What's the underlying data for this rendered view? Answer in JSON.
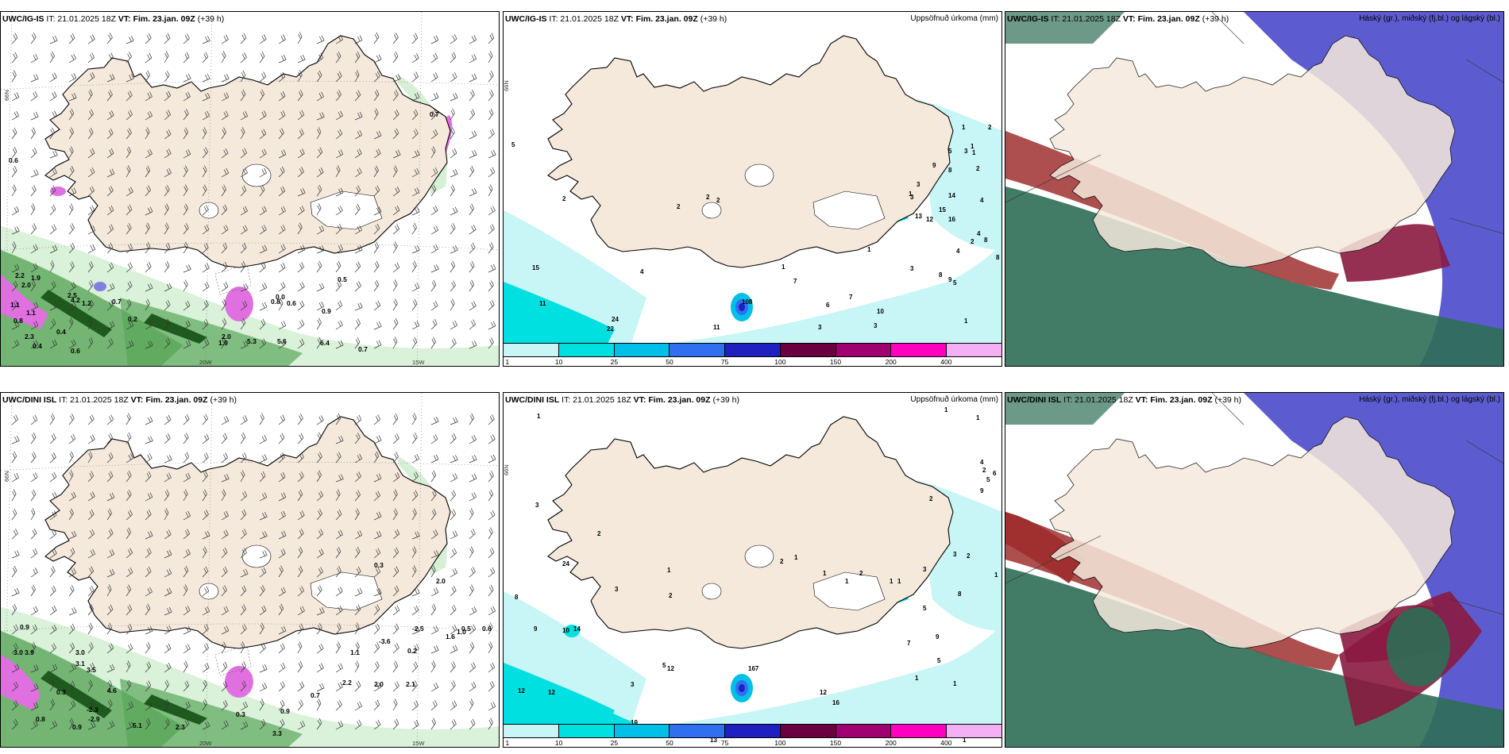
{
  "header_common": {
    "it_label": "IT:",
    "it_value": "21.01.2025 18Z",
    "vt_label": "VT:",
    "vt_value": "Fim. 23.jan. 09Z",
    "lead": "(+39 h)"
  },
  "panels": [
    {
      "model": "UWC/IG-IS",
      "kind": "wind_precip",
      "right_label": ""
    },
    {
      "model": "UWC/IG-IS",
      "kind": "accum",
      "right_label": "Uppsöfnuð úrkoma (mm)"
    },
    {
      "model": "UWC/IG-IS",
      "kind": "clouds",
      "right_label": "Háský (gr.), miðský (fj.bl.) og lágský (bl.)"
    },
    {
      "model": "UWC/DINI ISL",
      "kind": "wind_precip",
      "right_label": ""
    },
    {
      "model": "UWC/DINI ISL",
      "kind": "accum",
      "right_label": "Uppsöfnuð úrkoma (mm)"
    },
    {
      "model": "UWC/DINI ISL",
      "kind": "clouds",
      "right_label": "Háský (gr.), miðský (fj.bl.) og lágský (bl.)"
    }
  ],
  "axis_labels": {
    "lat": "66N",
    "lon_w": "20W",
    "lon_e": "15W"
  },
  "colorbar": {
    "ticks": [
      "1",
      "10",
      "25",
      "50",
      "75",
      "100",
      "150",
      "200",
      "400"
    ],
    "colors": [
      "#c8f5f5",
      "#00e0e0",
      "#00bfe8",
      "#3070f0",
      "#2020c0",
      "#6a0040",
      "#a00070",
      "#ff00c0",
      "#f4b0f4"
    ]
  },
  "colors": {
    "land": "#f5e9dc",
    "ocean_fill": "#ffffff",
    "precip_light": "#d6f0d6",
    "precip_mid": "#5aa65a",
    "precip_dark": "#1e5a1e",
    "snow_pink": "#e070e0",
    "cloud_high": "#2e6e56",
    "cloud_mid": "#a03030",
    "cloud_low": "#4040c8"
  },
  "accum_top": {
    "labels": [
      "5",
      "2",
      "2",
      "2",
      "2",
      "4",
      "15",
      "11",
      "24",
      "22",
      "11",
      "108",
      "7",
      "6",
      "7",
      "3",
      "3",
      "1",
      "1",
      "1",
      "3",
      "3",
      "13",
      "15",
      "14",
      "9",
      "8",
      "5",
      "3",
      "2",
      "1",
      "1",
      "1",
      "2",
      "4",
      "4",
      "4",
      "2",
      "8",
      "8",
      "8",
      "9",
      "5",
      "3",
      "12",
      "16",
      "10",
      "1"
    ]
  },
  "accum_bottom": {
    "labels": [
      "1",
      "24",
      "3",
      "2",
      "1",
      "2",
      "8",
      "9",
      "10",
      "14",
      "12",
      "12",
      "3",
      "5",
      "12",
      "3",
      "19",
      "13",
      "8",
      "167",
      "12",
      "16",
      "2",
      "1",
      "1",
      "1",
      "2",
      "2",
      "5",
      "4",
      "2",
      "3",
      "3",
      "8",
      "5",
      "9",
      "7",
      "5",
      "1",
      "1",
      "1",
      "2",
      "1",
      "1",
      "2",
      "1",
      "1",
      "9",
      "6",
      "1"
    ]
  },
  "wind_top": {
    "labels": [
      "0.6",
      "0.7",
      "2.2",
      "2.0",
      "1.9",
      "1.1",
      "0.8",
      "0.4",
      "0.6",
      "2.3",
      "2.5",
      "4.2",
      "1.2",
      "0.7",
      "0.2",
      "1.1",
      "0.4",
      "2.0",
      "1.9",
      "5.3",
      "5.6",
      "6.4",
      "0.7",
      "0.9",
      "0.6",
      "0.5",
      "0.8",
      "0.0"
    ]
  },
  "wind_bottom": {
    "labels": [
      "0.9",
      "3.0",
      "3.1",
      "3.5",
      "4.6",
      "0.3",
      "-2.3",
      "-2.9",
      "0.8",
      "0.9",
      "5.1",
      "2.3",
      "0.3",
      "3.3",
      "0.9",
      "0.7",
      "2.2",
      "2.0",
      "2.1",
      "1.1",
      "-3.6",
      "-2.5",
      "0.2",
      "1.6",
      "0.5",
      "0.6",
      "1.0",
      "0.3",
      "3.0",
      "3.9",
      "2.0"
    ]
  }
}
